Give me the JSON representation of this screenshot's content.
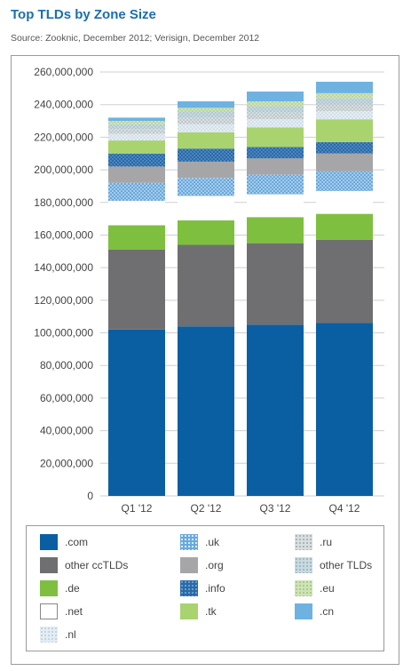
{
  "title": "Top TLDs by Zone Size",
  "subtitle": "Source: Zooknic, December 2012; Verisign, December 2012",
  "colors": {
    "com": "#0a5fa3",
    "other_cctlds": "#6f6f72",
    "de": "#7fbf3f",
    "net": "#ffffff",
    "uk": "#69a9dc",
    "org": "#a6a6a8",
    "info": "#2a6aa8",
    "tk": "#a9d36e",
    "nl": "#e4edf4",
    "ru": "#d9dedf",
    "other_tlds": "#c9d9df",
    "eu": "#cfe3b6",
    "cn": "#6eb2e2",
    "grid": "#cfcfcf"
  },
  "chart_data": {
    "type": "bar",
    "stacked": true,
    "categories": [
      "Q1 '12",
      "Q2 '12",
      "Q3 '12",
      "Q4 '12"
    ],
    "ylim": [
      0,
      260000000
    ],
    "yticks": [
      0,
      20000000,
      40000000,
      60000000,
      80000000,
      100000000,
      120000000,
      140000000,
      160000000,
      180000000,
      200000000,
      220000000,
      240000000,
      260000000
    ],
    "ytick_labels": [
      "0",
      "20,000,000",
      "40,000,000",
      "60,000,000",
      "80,000,000",
      "100,000,000",
      "120,000,000",
      "140,000,000",
      "160,000,000",
      "180,000,000",
      "200,000,000",
      "220,000,000",
      "240,000,000",
      "260,000,000"
    ],
    "grid": true,
    "legend_position": "bottom",
    "series": [
      {
        "name": ".com",
        "key": "com",
        "values": [
          102000000,
          104000000,
          105000000,
          106000000
        ]
      },
      {
        "name": "other ccTLDs",
        "key": "other_cctlds",
        "values": [
          49000000,
          50000000,
          50000000,
          51000000
        ]
      },
      {
        "name": ".de",
        "key": "de",
        "values": [
          15000000,
          15000000,
          16000000,
          16000000
        ]
      },
      {
        "name": ".net",
        "key": "net",
        "values": [
          15000000,
          15000000,
          14000000,
          14000000
        ]
      },
      {
        "name": ".uk",
        "key": "uk",
        "values": [
          11000000,
          11000000,
          12000000,
          12000000
        ]
      },
      {
        "name": ".org",
        "key": "org",
        "values": [
          10000000,
          10000000,
          10000000,
          11000000
        ]
      },
      {
        "name": ".info",
        "key": "info",
        "values": [
          8000000,
          8000000,
          7000000,
          7000000
        ]
      },
      {
        "name": ".tk",
        "key": "tk",
        "values": [
          8000000,
          10000000,
          12000000,
          14000000
        ]
      },
      {
        "name": ".nl",
        "key": "nl",
        "values": [
          4000000,
          5000000,
          5000000,
          5000000
        ]
      },
      {
        "name": ".ru",
        "key": "ru",
        "values": [
          3000000,
          4000000,
          4000000,
          4000000
        ]
      },
      {
        "name": "other TLDs",
        "key": "other_tlds",
        "values": [
          3000000,
          4000000,
          4000000,
          4000000
        ]
      },
      {
        "name": ".eu",
        "key": "eu",
        "values": [
          2000000,
          2000000,
          3000000,
          3000000
        ]
      },
      {
        "name": ".cn",
        "key": "cn",
        "values": [
          2000000,
          4000000,
          6000000,
          7000000
        ]
      }
    ]
  },
  "legend": [
    {
      "label": ".com",
      "key": "com"
    },
    {
      "label": ".uk",
      "key": "uk"
    },
    {
      "label": ".ru",
      "key": "ru"
    },
    {
      "label": "other ccTLDs",
      "key": "other_cctlds"
    },
    {
      "label": ".org",
      "key": "org"
    },
    {
      "label": "other TLDs",
      "key": "other_tlds"
    },
    {
      "label": ".de",
      "key": "de"
    },
    {
      "label": ".info",
      "key": "info"
    },
    {
      "label": ".eu",
      "key": "eu"
    },
    {
      "label": ".net",
      "key": "net"
    },
    {
      "label": ".tk",
      "key": "tk"
    },
    {
      "label": ".cn",
      "key": "cn"
    },
    {
      "label": ".nl",
      "key": "nl"
    }
  ]
}
